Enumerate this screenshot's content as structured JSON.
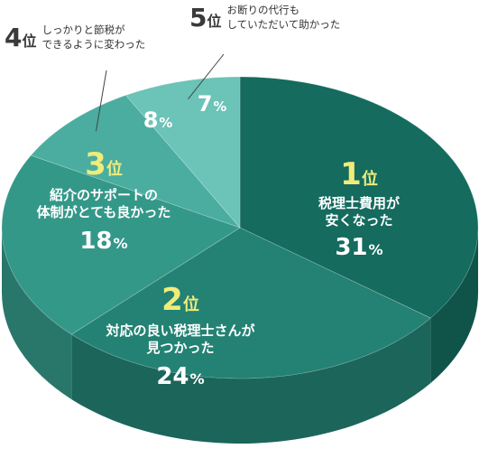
{
  "chart_data": {
    "type": "pie",
    "title": "",
    "slices": [
      {
        "rank": "1",
        "rank_suffix": "位",
        "label": "税理士費用が安くなった",
        "label_lines": [
          "税理士費用が",
          "安くなった"
        ],
        "value": 31,
        "unit": "%",
        "color": "#146b5e"
      },
      {
        "rank": "2",
        "rank_suffix": "位",
        "label": "対応の良い税理士さんが見つかった",
        "label_lines": [
          "対応の良い税理士さんが",
          "見つかった"
        ],
        "value": 24,
        "unit": "%",
        "color": "#238273"
      },
      {
        "rank": "3",
        "rank_suffix": "位",
        "label": "紹介のサポートの体制がとても良かった",
        "label_lines": [
          "紹介のサポートの",
          "体制がとても良かった"
        ],
        "value": 18,
        "unit": "%",
        "color": "#349889"
      },
      {
        "rank": "4",
        "rank_suffix": "位",
        "label": "しっかりと節税ができるように変わった",
        "label_lines": [
          "しっかりと節税が",
          "できるように変わった"
        ],
        "value": 8,
        "unit": "%",
        "color": "#4bad9f"
      },
      {
        "rank": "5",
        "rank_suffix": "位",
        "label": "お断りの代行もしていただいて助かった",
        "label_lines": [
          "お断りの代行も",
          "していただいて助かった"
        ],
        "value": 7,
        "unit": "%",
        "color": "#6cc3b7"
      }
    ],
    "rank_color": "#f0ec7a",
    "legend": "none"
  }
}
